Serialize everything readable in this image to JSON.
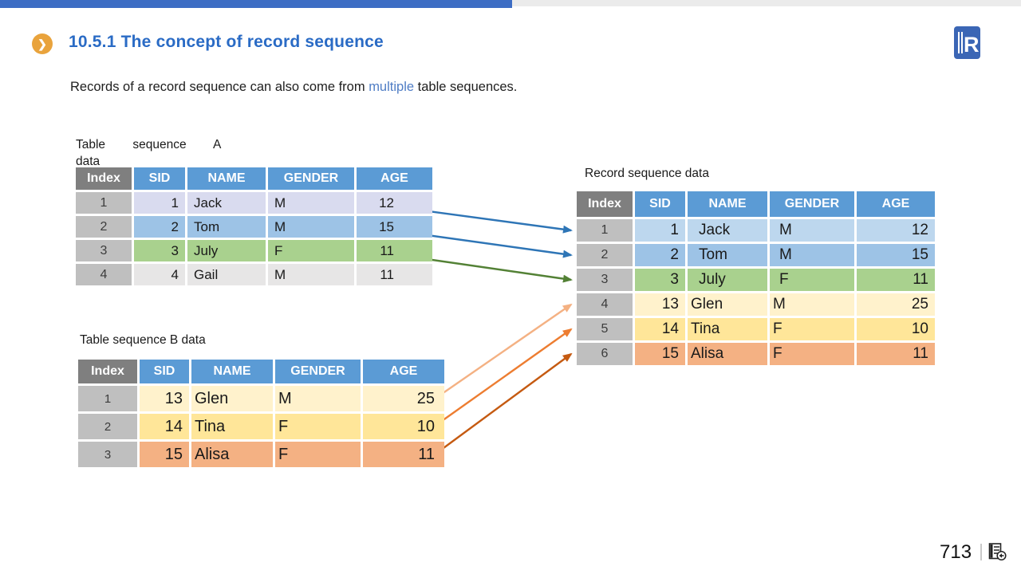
{
  "page": {
    "title": "10.5.1 The concept of record sequence",
    "body": {
      "prefix": "Records of a record sequence can also come from ",
      "highlight": "multiple",
      "suffix": " table sequences."
    },
    "page_number": "713",
    "logo_letter": "R"
  },
  "icons": {
    "bullet_chevron": "❯"
  },
  "colors": {
    "topbar_blue": "#3D6DC4",
    "topbar_gray": "#EBEBEB",
    "title_blue": "#2A6BC5",
    "bullet_gold": "#E9A33C",
    "highlight_blue": "#4F7DC5",
    "header_blue": "#5B9BD5",
    "header_gray": "#7F7F7F",
    "index_gray": "#BFBFBF",
    "logo_blue": "#3B66B5"
  },
  "tables": {
    "a": {
      "label_line1": "Table sequence A",
      "label_line2": "data",
      "headers": [
        "Index",
        "SID",
        "NAME",
        "GENDER",
        "AGE"
      ],
      "rows": [
        {
          "index": "1",
          "sid": "1",
          "name": "Jack",
          "gender": "M",
          "age": "12",
          "bg": "#D9DBEF"
        },
        {
          "index": "2",
          "sid": "2",
          "name": "Tom",
          "gender": "M",
          "age": "15",
          "bg": "#9DC3E6"
        },
        {
          "index": "3",
          "sid": "3",
          "name": "July",
          "gender": "F",
          "age": "11",
          "bg": "#A9D18E"
        },
        {
          "index": "4",
          "sid": "4",
          "name": "Gail",
          "gender": "M",
          "age": "11",
          "bg": "#E7E6E6"
        }
      ]
    },
    "b": {
      "label": "Table sequence B data",
      "headers": [
        "Index",
        "SID",
        "NAME",
        "GENDER",
        "AGE"
      ],
      "rows": [
        {
          "index": "1",
          "sid": "13",
          "name": "Glen",
          "gender": "M",
          "age": "25",
          "bg": "#FFF2CC"
        },
        {
          "index": "2",
          "sid": "14",
          "name": "Tina",
          "gender": "F",
          "age": "10",
          "bg": "#FFE699"
        },
        {
          "index": "3",
          "sid": "15",
          "name": "Alisa",
          "gender": "F",
          "age": "11",
          "bg": "#F4B183"
        }
      ]
    },
    "record": {
      "label": "Record sequence data",
      "headers": [
        "Index",
        "SID",
        "NAME",
        "GENDER",
        "AGE"
      ],
      "rows": [
        {
          "index": "1",
          "sid": "1",
          "name": "Jack",
          "gender": "M",
          "age": "12",
          "bg": "#BDD7EE",
          "src": "a"
        },
        {
          "index": "2",
          "sid": "2",
          "name": "Tom",
          "gender": "M",
          "age": "15",
          "bg": "#9DC3E6",
          "src": "a"
        },
        {
          "index": "3",
          "sid": "3",
          "name": "July",
          "gender": "F",
          "age": "11",
          "bg": "#A9D18E",
          "src": "a"
        },
        {
          "index": "4",
          "sid": "13",
          "name": "Glen",
          "gender": "M",
          "age": "25",
          "bg": "#FFF2CC",
          "src": "b"
        },
        {
          "index": "5",
          "sid": "14",
          "name": "Tina",
          "gender": "F",
          "age": "10",
          "bg": "#FFE699",
          "src": "b"
        },
        {
          "index": "6",
          "sid": "15",
          "name": "Alisa",
          "gender": "F",
          "age": "11",
          "bg": "#F4B183",
          "src": "b"
        }
      ]
    }
  },
  "arrows": [
    {
      "from": "a1",
      "to": "r1",
      "color": "#2E75B6"
    },
    {
      "from": "a2",
      "to": "r2",
      "color": "#2E75B6"
    },
    {
      "from": "a3",
      "to": "r3",
      "color": "#538135"
    },
    {
      "from": "b1",
      "to": "r4",
      "color": "#F4B183"
    },
    {
      "from": "b2",
      "to": "r5",
      "color": "#ED7D31"
    },
    {
      "from": "b3",
      "to": "r6",
      "color": "#C55A11"
    }
  ]
}
